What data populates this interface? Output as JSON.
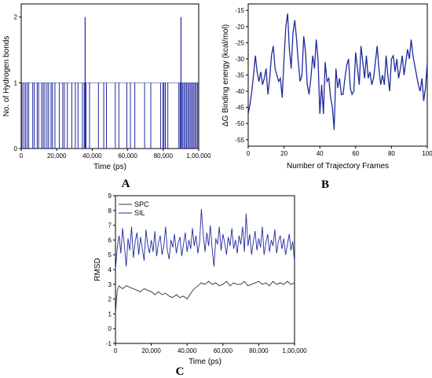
{
  "colors": {
    "blue": "#1f2a9e",
    "gray": "#333333",
    "frame": "#000000"
  },
  "chart_data": [
    {
      "panel": "A",
      "type": "bar",
      "xlabel": "Time (ps)",
      "ylabel": "No. of Hydrogen bonds",
      "xlim": [
        0,
        100000
      ],
      "ylim": [
        0,
        2.2
      ],
      "xticks": [
        0,
        20000,
        40000,
        60000,
        80000,
        100000
      ],
      "xtick_labels": [
        "0",
        "20,000",
        "40,000",
        "60,000",
        "80,000",
        "1,00,000"
      ],
      "yticks": [
        0,
        1,
        2
      ],
      "ytick_labels": [
        "0",
        "1",
        "2"
      ],
      "one_bond_times": [
        500,
        1500,
        2400,
        3300,
        4200,
        6500,
        7400,
        9000,
        9800,
        11500,
        12400,
        13300,
        14500,
        15400,
        16800,
        17600,
        19000,
        21500,
        23400,
        24300,
        26000,
        28500,
        30500,
        32000,
        34500,
        35500,
        36500,
        38500,
        43500,
        46500,
        48000,
        53000,
        55000,
        59500,
        61500,
        64000,
        69500,
        73000,
        78500,
        79800,
        80400,
        81200,
        82600,
        88800,
        89500,
        90300,
        91000,
        91700,
        92400,
        93100,
        93800,
        94500,
        95200,
        95900,
        96600,
        97300,
        98000,
        98700,
        99400
      ],
      "two_bond_times": [
        36000,
        90000
      ]
    },
    {
      "panel": "B",
      "type": "line",
      "xlabel": "Number of Trajectory Frames",
      "ylabel": "ΔG Binding energy (kcal/mol)",
      "xlim": [
        0,
        100
      ],
      "ylim": [
        -57,
        -13
      ],
      "xticks": [
        0,
        20,
        40,
        60,
        80,
        100
      ],
      "xtick_labels": [
        "0",
        "20",
        "40",
        "60",
        "80",
        "100"
      ],
      "yticks": [
        -55,
        -50,
        -45,
        -40,
        -35,
        -30,
        -25,
        -20,
        -15
      ],
      "ytick_labels": [
        "-55",
        "-50",
        "-45",
        "-40",
        "-35",
        "-30",
        "-25",
        "-20",
        "-15"
      ],
      "series": [
        {
          "x": [
            0,
            1,
            2,
            3,
            4,
            5,
            6,
            7,
            8,
            9,
            10,
            11,
            12,
            13,
            14,
            15,
            16,
            17,
            18,
            19,
            20,
            21,
            22,
            23,
            24,
            25,
            26,
            27,
            28,
            29,
            30,
            31,
            32,
            33,
            34,
            35,
            36,
            37,
            38,
            39,
            40,
            41,
            42,
            43,
            44,
            45,
            46,
            47,
            48,
            49,
            50,
            51,
            52,
            53,
            54,
            55,
            56,
            57,
            58,
            59,
            60,
            61,
            62,
            63,
            64,
            65,
            66,
            67,
            68,
            69,
            70,
            71,
            72,
            73,
            74,
            75,
            76,
            77,
            78,
            79,
            80,
            81,
            82,
            83,
            84,
            85,
            86,
            87,
            88,
            89,
            90,
            91,
            92,
            93,
            94,
            95,
            96,
            97,
            98,
            99,
            100
          ],
          "y": [
            -47,
            -44,
            -40,
            -35,
            -29,
            -34,
            -37,
            -34,
            -38,
            -36,
            -33,
            -41,
            -36,
            -29,
            -26,
            -33,
            -35,
            -37,
            -36,
            -42,
            -30,
            -20,
            -16,
            -27,
            -33,
            -22,
            -18,
            -24,
            -31,
            -37,
            -35,
            -23,
            -28,
            -38,
            -41,
            -36,
            -29,
            -33,
            -24,
            -30,
            -47,
            -38,
            -47,
            -31,
            -37,
            -36,
            -42,
            -45,
            -52,
            -33,
            -39,
            -36,
            -41,
            -41,
            -36,
            -32,
            -30,
            -39,
            -41,
            -40,
            -28,
            -33,
            -38,
            -26,
            -31,
            -36,
            -29,
            -36,
            -34,
            -38,
            -36,
            -31,
            -26,
            -33,
            -38,
            -35,
            -38,
            -29,
            -35,
            -40,
            -30,
            -29,
            -34,
            -30,
            -36,
            -33,
            -29,
            -35,
            -31,
            -27,
            -30,
            -24,
            -29,
            -32,
            -35,
            -38,
            -40,
            -36,
            -43,
            -39,
            -31
          ]
        }
      ]
    },
    {
      "panel": "C",
      "type": "line",
      "xlabel": "Time (ps)",
      "ylabel": "RMSD",
      "xlim": [
        0,
        100000
      ],
      "ylim": [
        -1,
        9
      ],
      "xticks": [
        0,
        20000,
        40000,
        60000,
        80000,
        100000
      ],
      "xtick_labels": [
        "0",
        "20,000",
        "40,000",
        "60,000",
        "80,000",
        "1,00,000"
      ],
      "yticks": [
        -1,
        0,
        1,
        2,
        3,
        4,
        5,
        6,
        7,
        8,
        9
      ],
      "ytick_labels": [
        "-1",
        "0",
        "1",
        "2",
        "3",
        "4",
        "5",
        "6",
        "7",
        "8",
        "9"
      ],
      "legend_position": "top-left",
      "series": [
        {
          "name": "SPC",
          "x": [
            0,
            500,
            1000,
            2000,
            4000,
            6000,
            8000,
            10000,
            12000,
            14000,
            16000,
            18000,
            20000,
            22000,
            24000,
            26000,
            28000,
            30000,
            32000,
            34000,
            36000,
            38000,
            40000,
            42000,
            44000,
            46000,
            48000,
            50000,
            52000,
            54000,
            56000,
            58000,
            60000,
            62000,
            64000,
            66000,
            68000,
            70000,
            72000,
            74000,
            76000,
            78000,
            80000,
            82000,
            84000,
            86000,
            88000,
            90000,
            92000,
            94000,
            96000,
            98000,
            100000
          ],
          "y": [
            1.0,
            1.8,
            2.6,
            2.9,
            2.7,
            2.9,
            2.8,
            2.7,
            2.6,
            2.5,
            2.7,
            2.6,
            2.5,
            2.3,
            2.5,
            2.3,
            2.4,
            2.2,
            2.1,
            2.3,
            2.1,
            2.2,
            2.0,
            2.4,
            2.7,
            2.9,
            3.1,
            3.0,
            3.2,
            3.0,
            3.1,
            2.9,
            3.0,
            3.2,
            2.9,
            3.1,
            3.0,
            3.0,
            3.2,
            2.9,
            3.0,
            3.1,
            3.2,
            3.0,
            3.1,
            2.9,
            3.2,
            3.0,
            3.1,
            3.0,
            3.2,
            3.0,
            3.1
          ]
        },
        {
          "name": "SIL",
          "x": [
            0,
            1000,
            2000,
            3000,
            4000,
            5000,
            6000,
            7000,
            8000,
            9000,
            10000,
            11000,
            12000,
            13000,
            14000,
            15000,
            16000,
            17000,
            18000,
            19000,
            20000,
            21000,
            22000,
            23000,
            24000,
            25000,
            26000,
            27000,
            28000,
            29000,
            30000,
            31000,
            32000,
            33000,
            34000,
            35000,
            36000,
            37000,
            38000,
            39000,
            40000,
            41000,
            42000,
            43000,
            44000,
            45000,
            46000,
            47000,
            48000,
            49000,
            50000,
            51000,
            52000,
            53000,
            54000,
            55000,
            56000,
            57000,
            58000,
            59000,
            60000,
            61000,
            62000,
            63000,
            64000,
            65000,
            66000,
            67000,
            68000,
            69000,
            70000,
            71000,
            72000,
            73000,
            74000,
            75000,
            76000,
            77000,
            78000,
            79000,
            80000,
            81000,
            82000,
            83000,
            84000,
            85000,
            86000,
            87000,
            88000,
            89000,
            90000,
            91000,
            92000,
            93000,
            94000,
            95000,
            96000,
            97000,
            98000,
            99000,
            100000
          ],
          "y": [
            4.0,
            5.5,
            6.3,
            5.1,
            6.8,
            5.6,
            4.2,
            6.1,
            5.3,
            6.9,
            4.8,
            5.9,
            6.5,
            5.0,
            6.2,
            5.4,
            4.6,
            6.7,
            5.7,
            5.1,
            6.0,
            5.2,
            6.6,
            4.9,
            5.8,
            6.3,
            5.0,
            5.6,
            6.9,
            5.3,
            4.7,
            6.0,
            5.5,
            6.4,
            5.1,
            5.8,
            6.2,
            4.9,
            5.7,
            6.5,
            5.2,
            6.0,
            5.4,
            6.8,
            5.6,
            6.3,
            5.1,
            5.9,
            8.1,
            6.4,
            5.2,
            6.5,
            5.6,
            7.0,
            5.4,
            4.2,
            6.1,
            5.7,
            6.9,
            5.3,
            6.4,
            5.8,
            5.0,
            6.2,
            5.6,
            6.8,
            5.4,
            6.0,
            5.1,
            6.3,
            5.7,
            6.9,
            5.2,
            7.8,
            5.6,
            6.4,
            5.0,
            5.9,
            6.6,
            5.3,
            6.1,
            5.5,
            6.9,
            5.0,
            5.8,
            6.4,
            5.2,
            6.0,
            5.6,
            6.7,
            5.1,
            5.9,
            6.3,
            5.4,
            6.1,
            5.0,
            5.7,
            6.4,
            5.3,
            5.9,
            4.5
          ]
        }
      ]
    }
  ]
}
